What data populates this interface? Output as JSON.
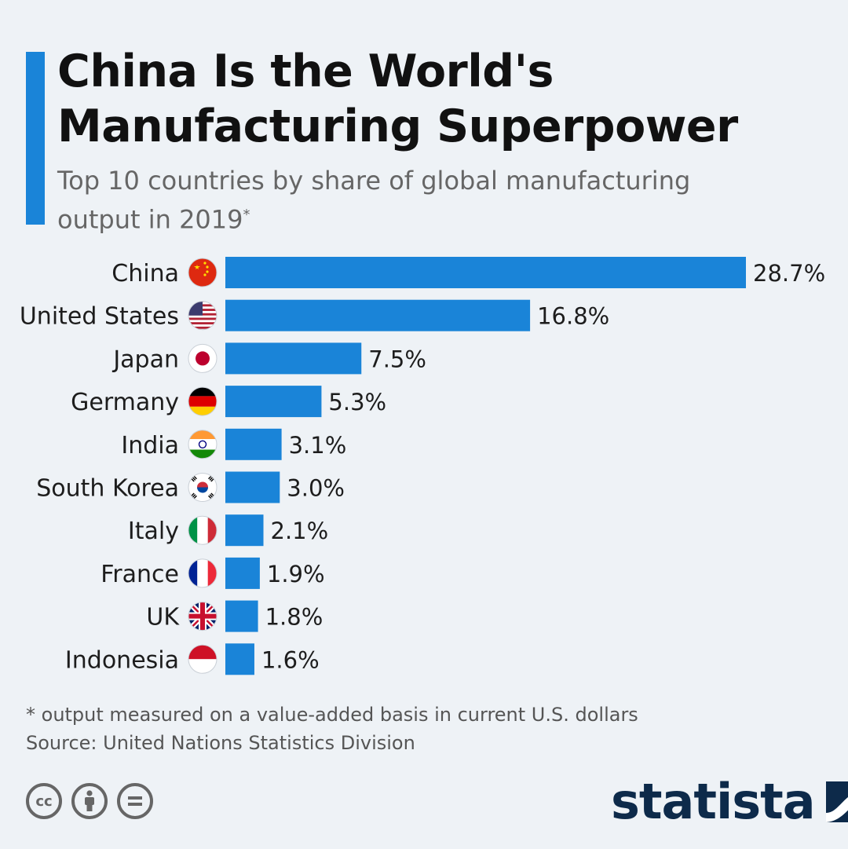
{
  "header": {
    "title": "China Is the World's Manufacturing Superpower",
    "subtitle": "Top 10 countries by share of global manufacturing output in 2019",
    "subtitle_mark": "*"
  },
  "chart_data": {
    "type": "bar",
    "orientation": "horizontal",
    "categories": [
      "China",
      "United States",
      "Japan",
      "Germany",
      "India",
      "South Korea",
      "Italy",
      "France",
      "UK",
      "Indonesia"
    ],
    "values": [
      28.7,
      16.8,
      7.5,
      5.3,
      3.1,
      3.0,
      2.1,
      1.9,
      1.8,
      1.6
    ],
    "value_labels": [
      "28.7%",
      "16.8%",
      "7.5%",
      "5.3%",
      "3.1%",
      "3.0%",
      "2.1%",
      "1.9%",
      "1.8%",
      "1.6%"
    ],
    "unit": "%",
    "flags": [
      "china-flag-icon",
      "usa-flag-icon",
      "japan-flag-icon",
      "germany-flag-icon",
      "india-flag-icon",
      "south-korea-flag-icon",
      "italy-flag-icon",
      "france-flag-icon",
      "uk-flag-icon",
      "indonesia-flag-icon"
    ],
    "xlim": [
      0,
      28.7
    ],
    "grid": false,
    "bar_color": "#1a84d8"
  },
  "footer": {
    "note": "* output measured on a value-added basis in current U.S. dollars",
    "source": "Source: United Nations Statistics Division",
    "license_icons": [
      "cc-icon",
      "attribution-icon",
      "no-derivatives-icon"
    ],
    "cc_text": "cc",
    "brand": "statista"
  }
}
